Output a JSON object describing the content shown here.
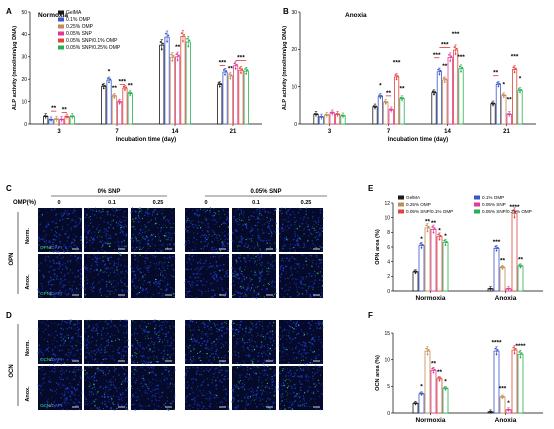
{
  "colors": {
    "GelMA": "#1a1a1a",
    "0.1% OMP": "#3a56c8",
    "0.25% OMP": "#c48a52",
    "0.05% SNP": "#e03a96",
    "0.05% SNP/0.1% OMP": "#e0443a",
    "0.05% SNP/0.25% OMP": "#27b052",
    "sig": "#e0141e",
    "micro_bg": "#050a2a",
    "micro_cell": "#1e3fd2",
    "micro_green": "#38e064",
    "scale": "#ffffff"
  },
  "chart_data": [
    {
      "id": "A",
      "type": "bar",
      "title": "Normoxia",
      "xlabel": "Incubation time (day)",
      "ylabel": "ALP activity (nmol/min/μg DNA)",
      "ylim": [
        0,
        50
      ],
      "yticks": [
        "0",
        "10",
        "20",
        "30",
        "40",
        "50"
      ],
      "categories": [
        "3",
        "7",
        "14",
        "21"
      ],
      "legend_loc": "top-left",
      "series": [
        {
          "name": "GelMA",
          "values": [
            3.4,
            16.8,
            35.2,
            17.6
          ]
        },
        {
          "name": "0.1% OMP",
          "values": [
            1.9,
            19.6,
            38.8,
            23.2
          ]
        },
        {
          "name": "0.25% OMP",
          "values": [
            2.2,
            12.4,
            29.8,
            21.4
          ]
        },
        {
          "name": "0.05% SNP",
          "values": [
            2.0,
            9.8,
            30.0,
            26.0
          ]
        },
        {
          "name": "0.05% SNP/0.1% OMP",
          "values": [
            3.2,
            16.0,
            39.0,
            24.0
          ]
        },
        {
          "name": "0.05% SNP/0.25% OMP",
          "values": [
            3.4,
            13.6,
            36.6,
            23.6
          ]
        }
      ],
      "annotations": [
        {
          "text": "**",
          "group": 0,
          "bars": [
            1,
            2
          ],
          "y": 6.2
        },
        {
          "text": "**",
          "group": 0,
          "bars": [
            3,
            4
          ],
          "y": 5.6
        },
        {
          "text": "*",
          "group": 1,
          "bars": [
            1,
            1
          ],
          "y": 22.5
        },
        {
          "text": "**",
          "group": 1,
          "bars": [
            2,
            2
          ],
          "y": 15.2
        },
        {
          "text": "***",
          "group": 1,
          "bars": [
            3,
            4
          ],
          "y": 18.0
        },
        {
          "text": "**",
          "group": 1,
          "bars": [
            5,
            5
          ],
          "y": 16.4
        },
        {
          "text": "**",
          "group": 2,
          "bars": [
            3,
            3
          ],
          "y": 33.4
        },
        {
          "text": "***",
          "group": 3,
          "bars": [
            0,
            1
          ],
          "y": 26.6
        },
        {
          "text": "**",
          "group": 3,
          "bars": [
            2,
            2
          ],
          "y": 23.8
        },
        {
          "text": "***",
          "group": 3,
          "bars": [
            3,
            5
          ],
          "y": 28.8
        }
      ]
    },
    {
      "id": "B",
      "type": "bar",
      "title": "Anoxia",
      "xlabel": "Incubation time (day)",
      "ylabel": "ALP activity (nmol/min/μg DNA)",
      "ylim": [
        0,
        30
      ],
      "yticks": [
        "0",
        "10",
        "20",
        "30"
      ],
      "categories": [
        "3",
        "7",
        "14",
        "21"
      ],
      "series": [
        {
          "name": "GelMA",
          "values": [
            2.6,
            4.6,
            8.4,
            5.4
          ]
        },
        {
          "name": "0.1% OMP",
          "values": [
            1.9,
            7.4,
            14.0,
            10.6
          ]
        },
        {
          "name": "0.25% OMP",
          "values": [
            2.4,
            5.8,
            11.8,
            7.6
          ]
        },
        {
          "name": "0.05% SNP",
          "values": [
            3.0,
            3.8,
            17.8,
            2.6
          ]
        },
        {
          "name": "0.05% SNP/0.1% OMP",
          "values": [
            2.6,
            12.6,
            19.8,
            14.6
          ]
        },
        {
          "name": "0.05% SNP/0.25% OMP",
          "values": [
            2.2,
            6.8,
            14.8,
            9.0
          ]
        }
      ],
      "annotations": [
        {
          "text": "*",
          "group": 1,
          "bars": [
            1,
            1
          ],
          "y": 9.8
        },
        {
          "text": "**",
          "group": 1,
          "bars": [
            2,
            3
          ],
          "y": 7.8
        },
        {
          "text": "***",
          "group": 1,
          "bars": [
            4,
            4
          ],
          "y": 16.0
        },
        {
          "text": "**",
          "group": 1,
          "bars": [
            5,
            5
          ],
          "y": 9.0
        },
        {
          "text": "***",
          "group": 2,
          "bars": [
            0,
            1
          ],
          "y": 18.0
        },
        {
          "text": "***",
          "group": 2,
          "bars": [
            1,
            3
          ],
          "y": 20.8
        },
        {
          "text": "**",
          "group": 2,
          "bars": [
            2,
            2
          ],
          "y": 15.0
        },
        {
          "text": "***",
          "group": 2,
          "bars": [
            4,
            4
          ],
          "y": 23.6
        },
        {
          "text": "***",
          "group": 2,
          "bars": [
            5,
            5
          ],
          "y": 17.4
        },
        {
          "text": "**",
          "group": 3,
          "bars": [
            0,
            1
          ],
          "y": 13.2
        },
        {
          "text": "*",
          "group": 3,
          "bars": [
            2,
            2
          ],
          "y": 10.0
        },
        {
          "text": "**",
          "group": 3,
          "bars": [
            3,
            3
          ],
          "y": 6.0
        },
        {
          "text": "***",
          "group": 3,
          "bars": [
            4,
            4
          ],
          "y": 17.6
        },
        {
          "text": "*",
          "group": 3,
          "bars": [
            5,
            5
          ],
          "y": 11.6
        }
      ]
    },
    {
      "id": "E",
      "type": "bar",
      "xlabel": "",
      "ylabel": "OPN area (%)",
      "ylim": [
        0,
        12
      ],
      "yticks": [
        "0",
        "2",
        "4",
        "6",
        "8",
        "10",
        "12"
      ],
      "categories": [
        "Normoxia",
        "Anoxia"
      ],
      "legend_loc": "top",
      "series": [
        {
          "name": "GelMA",
          "values": [
            2.6,
            0.3
          ]
        },
        {
          "name": "0.1% OMP",
          "values": [
            6.2,
            5.8
          ]
        },
        {
          "name": "0.25% OMP",
          "values": [
            8.6,
            3.2
          ]
        },
        {
          "name": "0.05% SNP",
          "values": [
            8.4,
            0.3
          ]
        },
        {
          "name": "0.05% SNP/0.1% OMP",
          "values": [
            7.4,
            10.6
          ]
        },
        {
          "name": "0.05% SNP/0.25% OMP",
          "values": [
            6.6,
            3.4
          ]
        }
      ],
      "annotations": [
        {
          "text": "*",
          "group": 0,
          "bars": [
            1,
            1
          ],
          "y": 6.8
        },
        {
          "text": "**",
          "group": 0,
          "bars": [
            2,
            2
          ],
          "y": 9.2
        },
        {
          "text": "**",
          "group": 0,
          "bars": [
            3,
            3
          ],
          "y": 9.0
        },
        {
          "text": "*",
          "group": 0,
          "bars": [
            4,
            4
          ],
          "y": 8.0
        },
        {
          "text": "*",
          "group": 0,
          "bars": [
            5,
            5
          ],
          "y": 7.2
        },
        {
          "text": "***",
          "group": 1,
          "bars": [
            1,
            1
          ],
          "y": 6.4
        },
        {
          "text": "**",
          "group": 1,
          "bars": [
            2,
            2
          ],
          "y": 3.9
        },
        {
          "text": "****",
          "group": 1,
          "bars": [
            4,
            4
          ],
          "y": 11.2
        },
        {
          "text": "**",
          "group": 1,
          "bars": [
            5,
            5
          ],
          "y": 4.0
        }
      ]
    },
    {
      "id": "F",
      "type": "bar",
      "xlabel": "",
      "ylabel": "OCN area (%)",
      "ylim": [
        0,
        15
      ],
      "yticks": [
        "0",
        "5",
        "10",
        "15"
      ],
      "categories": [
        "Normoxia",
        "Anoxia"
      ],
      "series": [
        {
          "name": "GelMA",
          "values": [
            1.8,
            0.2
          ]
        },
        {
          "name": "0.1% OMP",
          "values": [
            3.6,
            11.6
          ]
        },
        {
          "name": "0.25% OMP",
          "values": [
            11.6,
            3.0
          ]
        },
        {
          "name": "0.05% SNP",
          "values": [
            8.0,
            0.6
          ]
        },
        {
          "name": "0.05% SNP/0.1% OMP",
          "values": [
            6.4,
            11.8
          ]
        },
        {
          "name": "0.05% SNP/0.25% OMP",
          "values": [
            4.6,
            11.0
          ]
        }
      ],
      "annotations": [
        {
          "text": "*",
          "group": 0,
          "bars": [
            1,
            1
          ],
          "y": 4.6
        },
        {
          "text": "**",
          "group": 0,
          "bars": [
            3,
            3
          ],
          "y": 8.9
        },
        {
          "text": "**",
          "group": 0,
          "bars": [
            4,
            4
          ],
          "y": 7.3
        },
        {
          "text": "*",
          "group": 0,
          "bars": [
            5,
            5
          ],
          "y": 5.5
        },
        {
          "text": "****",
          "group": 1,
          "bars": [
            1,
            1
          ],
          "y": 12.8
        },
        {
          "text": "***",
          "group": 1,
          "bars": [
            2,
            2
          ],
          "y": 4.2
        },
        {
          "text": "*",
          "group": 1,
          "bars": [
            3,
            3
          ],
          "y": 1.5
        },
        {
          "text": "****",
          "group": 1,
          "bars": [
            5,
            5
          ],
          "y": 12.2
        }
      ]
    }
  ],
  "panels": {
    "A": "A",
    "B": "B",
    "C": "C",
    "D": "D",
    "E": "E",
    "F": "F"
  },
  "micrographs": {
    "snp_headers": [
      "0% SNP",
      "0.05% SNP"
    ],
    "omp_label": "OMP(%)",
    "omp_values": [
      "0",
      "0.1",
      "0.25",
      "0",
      "0.1",
      "0.25"
    ],
    "C": {
      "row_group": "OPN",
      "rows": [
        "Norm.",
        "Anox."
      ],
      "stain_marker": "OPN",
      "stain_sep": "/",
      "stain_dapi": "DAPI",
      "green_density": [
        [
          0.04,
          0.1,
          0.14,
          0.12,
          0.11,
          0.1
        ],
        [
          0.01,
          0.08,
          0.05,
          0.01,
          0.13,
          0.06
        ]
      ]
    },
    "D": {
      "row_group": "OCN",
      "rows": [
        "Norm.",
        "Anox."
      ],
      "stain_marker": "OCN",
      "stain_sep": "/",
      "stain_dapi": "DAPI",
      "green_density": [
        [
          0.03,
          0.05,
          0.12,
          0.1,
          0.08,
          0.06
        ],
        [
          0.01,
          0.11,
          0.04,
          0.02,
          0.12,
          0.11
        ]
      ]
    },
    "scale_bar": "100 μm"
  }
}
